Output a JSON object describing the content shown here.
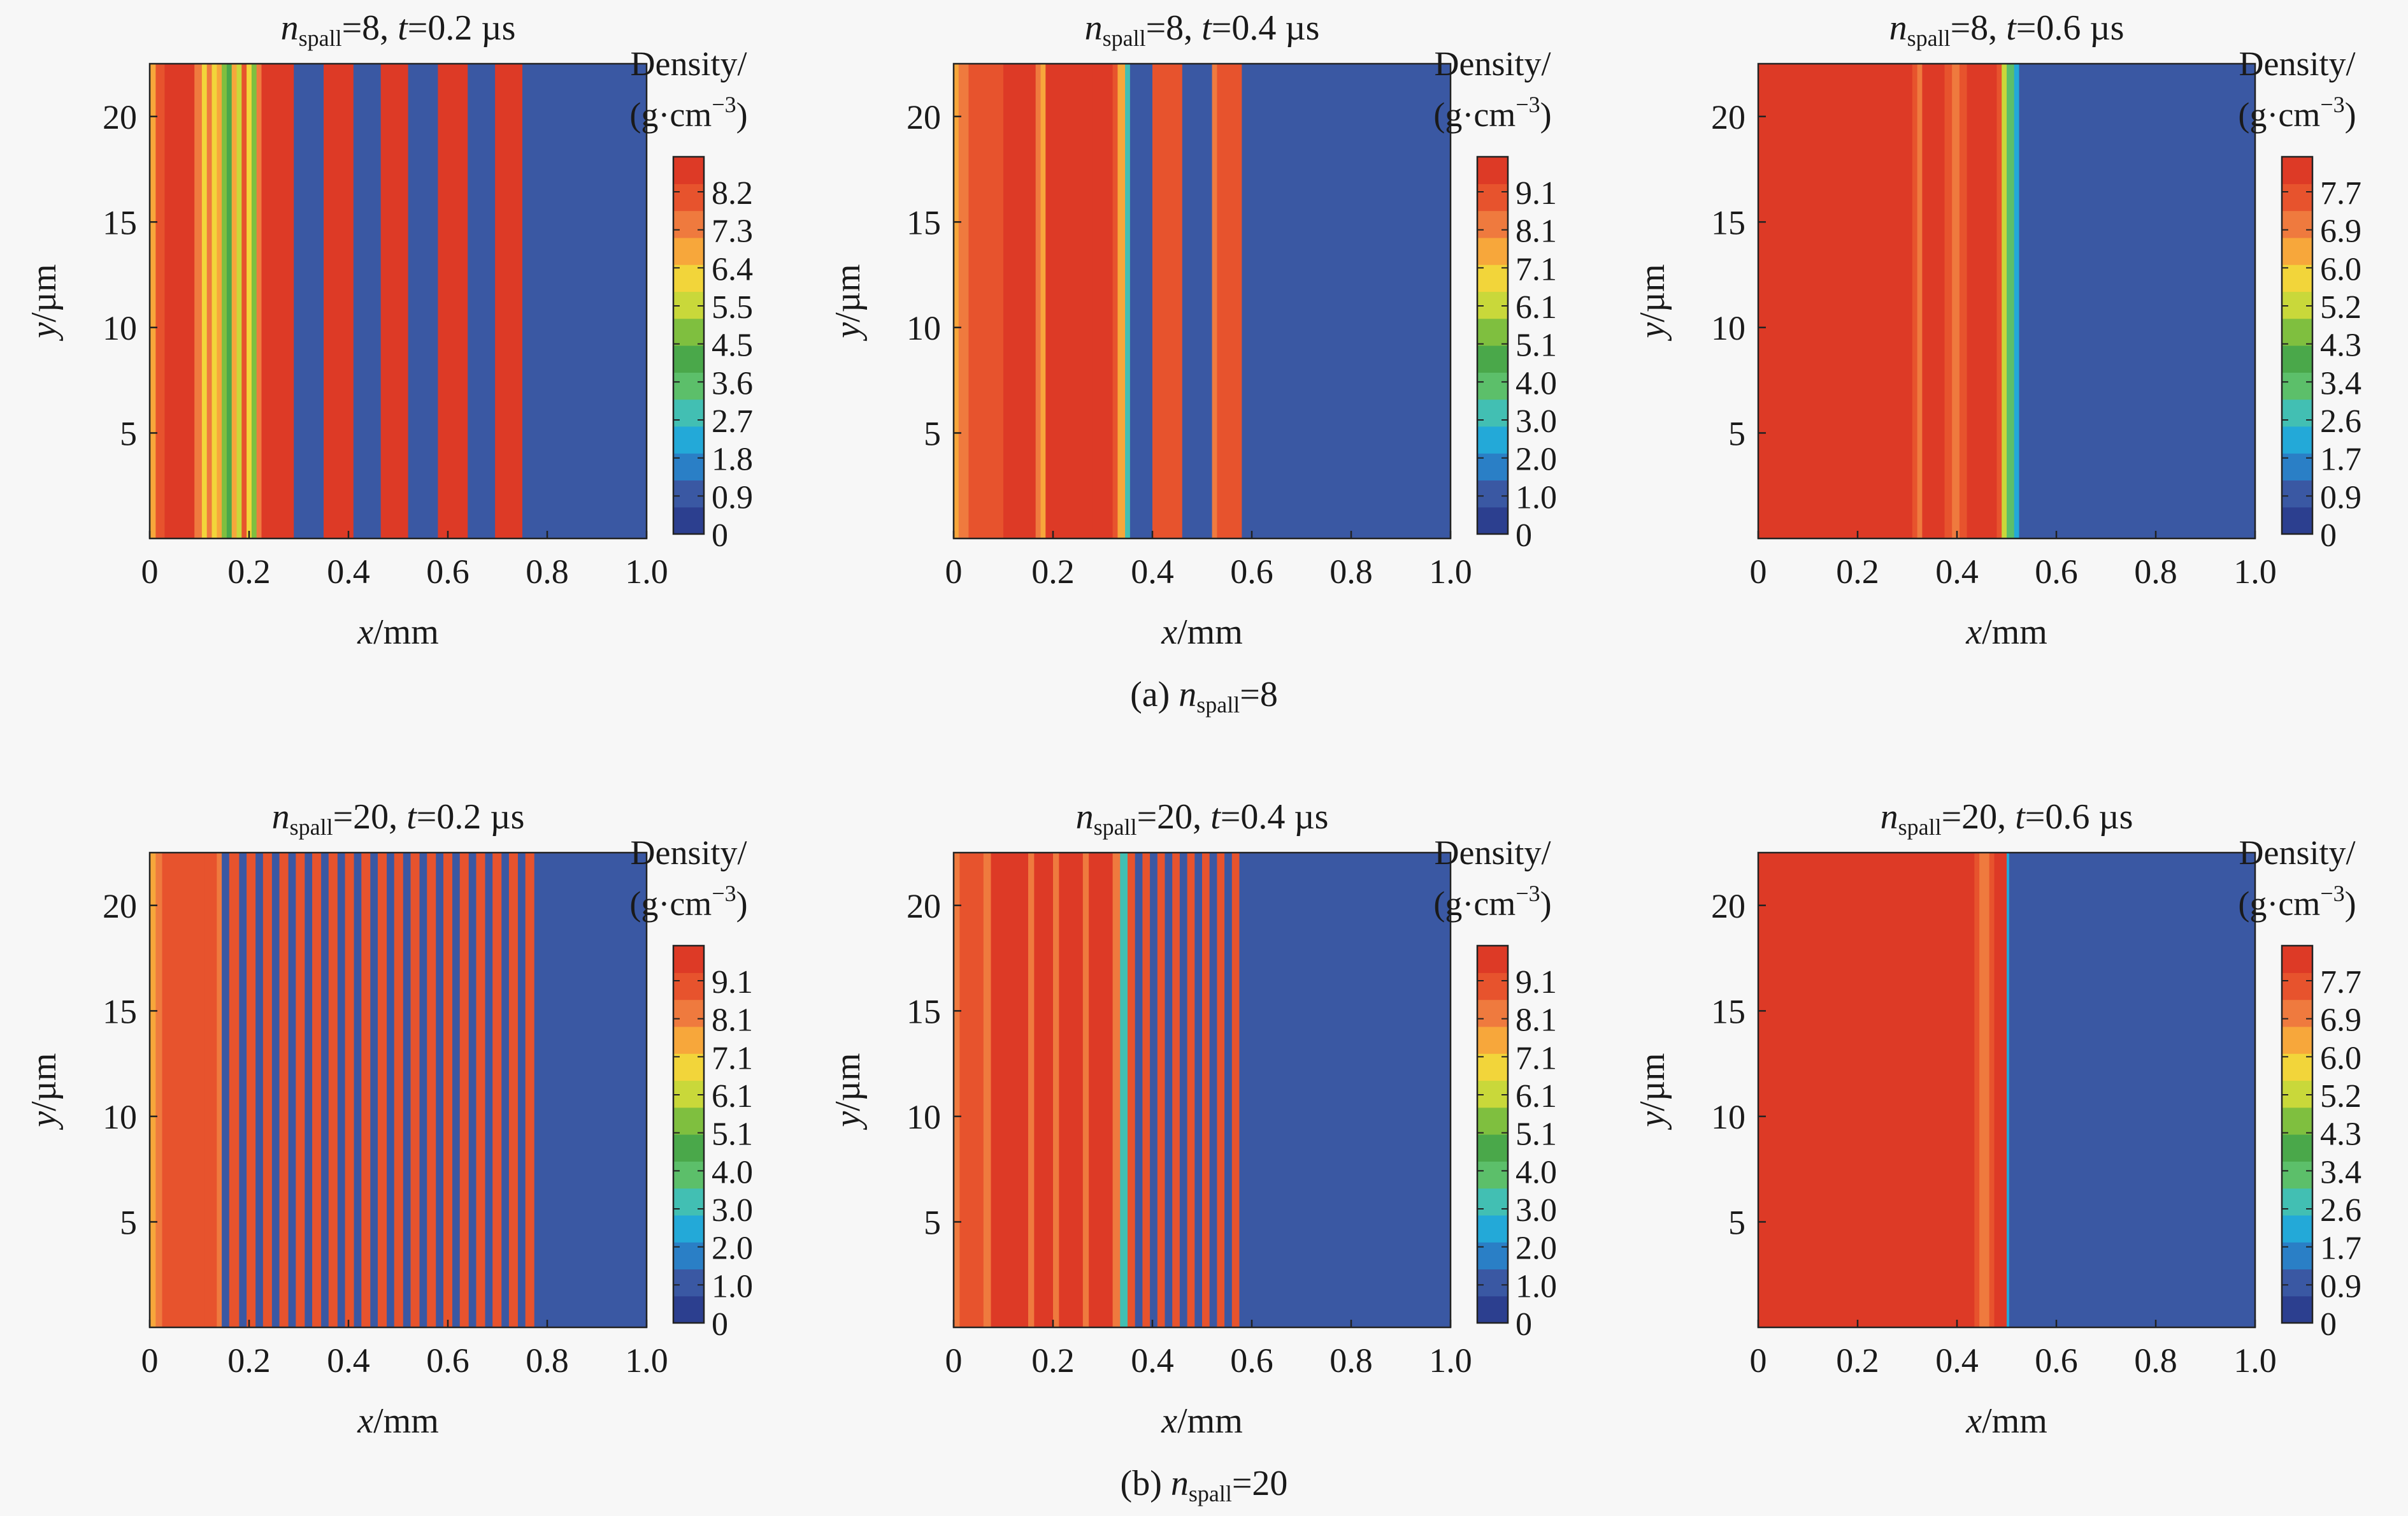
{
  "figure": {
    "background": "#f7f7f7",
    "plot_background": "#3a58a3",
    "colorbar_title_line1": "Density/",
    "colorbar_title_line2_prefix": "(g·cm",
    "colorbar_title_line2_exp": "−3",
    "colorbar_title_line2_suffix": ")",
    "colorbar_colors": [
      "#2c3f8f",
      "#3a58a3",
      "#2a7fc6",
      "#23a9d8",
      "#42bfb3",
      "#5cbf6a",
      "#4aa84a",
      "#7fbf3f",
      "#c9d83a",
      "#f2d53a",
      "#f7a73b",
      "#ef7a3e",
      "#e7532d",
      "#dd3a26"
    ]
  },
  "captions": [
    {
      "prefix": "(a) ",
      "n": "n",
      "sub": "spall",
      "suffix": "=8"
    },
    {
      "prefix": "(b) ",
      "n": "n",
      "sub": "spall",
      "suffix": "=20"
    }
  ],
  "chart_data": [
    {
      "type": "heatmap",
      "title": {
        "n": "n",
        "sub": "spall",
        "mid": "=8, ",
        "t": "t",
        "tail": "=0.2 µs"
      },
      "xlabel": {
        "var": "x",
        "unit": "/mm"
      },
      "ylabel": {
        "var": "y",
        "unit": "/µm"
      },
      "xlim": [
        0,
        1.0
      ],
      "ylim": [
        0,
        22.5
      ],
      "xticks": [
        "0",
        "0.2",
        "0.4",
        "0.6",
        "0.8",
        "1.0"
      ],
      "xtick_values": [
        0,
        0.2,
        0.4,
        0.6,
        0.8,
        1.0
      ],
      "yticks": [
        "5",
        "10",
        "15",
        "20"
      ],
      "ytick_values": [
        5,
        10,
        15,
        20
      ],
      "colorbar_ticks": [
        "0",
        "0.9",
        "1.8",
        "2.7",
        "3.6",
        "4.5",
        "5.5",
        "6.4",
        "7.3",
        "8.2"
      ],
      "colorbar_max": 9.2,
      "bands": [
        {
          "x0": 0.0,
          "x1": 0.012,
          "value": 7.0
        },
        {
          "x0": 0.012,
          "x1": 0.03,
          "value": 8.3
        },
        {
          "x0": 0.03,
          "x1": 0.09,
          "value": 8.9
        },
        {
          "x0": 0.09,
          "x1": 0.105,
          "value": 7.3
        },
        {
          "x0": 0.105,
          "x1": 0.115,
          "value": 6.5
        },
        {
          "x0": 0.115,
          "x1": 0.125,
          "value": 7.3
        },
        {
          "x0": 0.125,
          "x1": 0.135,
          "value": 6.0
        },
        {
          "x0": 0.135,
          "x1": 0.145,
          "value": 7.0
        },
        {
          "x0": 0.145,
          "x1": 0.155,
          "value": 5.0
        },
        {
          "x0": 0.155,
          "x1": 0.165,
          "value": 4.0
        },
        {
          "x0": 0.165,
          "x1": 0.175,
          "value": 7.0
        },
        {
          "x0": 0.175,
          "x1": 0.185,
          "value": 5.5
        },
        {
          "x0": 0.185,
          "x1": 0.195,
          "value": 8.0
        },
        {
          "x0": 0.195,
          "x1": 0.205,
          "value": 6.5
        },
        {
          "x0": 0.205,
          "x1": 0.215,
          "value": 5.0
        },
        {
          "x0": 0.215,
          "x1": 0.225,
          "value": 7.8
        },
        {
          "x0": 0.225,
          "x1": 0.235,
          "value": 8.6
        },
        {
          "x0": 0.235,
          "x1": 0.29,
          "value": 8.9
        },
        {
          "x0": 0.29,
          "x1": 0.35,
          "value": 0.95
        },
        {
          "x0": 0.35,
          "x1": 0.41,
          "value": 8.9
        },
        {
          "x0": 0.41,
          "x1": 0.465,
          "value": 0.95
        },
        {
          "x0": 0.465,
          "x1": 0.52,
          "value": 8.9
        },
        {
          "x0": 0.52,
          "x1": 0.58,
          "value": 0.95
        },
        {
          "x0": 0.58,
          "x1": 0.64,
          "value": 8.9
        },
        {
          "x0": 0.64,
          "x1": 0.695,
          "value": 0.95
        },
        {
          "x0": 0.695,
          "x1": 0.75,
          "value": 8.9
        },
        {
          "x0": 0.75,
          "x1": 1.0,
          "value": 0.95
        }
      ]
    },
    {
      "type": "heatmap",
      "title": {
        "n": "n",
        "sub": "spall",
        "mid": "=8, ",
        "t": "t",
        "tail": "=0.4 µs"
      },
      "xlabel": {
        "var": "x",
        "unit": "/mm"
      },
      "ylabel": {
        "var": "y",
        "unit": "/µm"
      },
      "xlim": [
        0,
        1.0
      ],
      "ylim": [
        0,
        22.5
      ],
      "xticks": [
        "0",
        "0.2",
        "0.4",
        "0.6",
        "0.8",
        "1.0"
      ],
      "xtick_values": [
        0,
        0.2,
        0.4,
        0.6,
        0.8,
        1.0
      ],
      "yticks": [
        "5",
        "10",
        "15",
        "20"
      ],
      "ytick_values": [
        5,
        10,
        15,
        20
      ],
      "colorbar_ticks": [
        "0",
        "1.0",
        "2.0",
        "3.0",
        "4.0",
        "5.1",
        "6.1",
        "7.1",
        "8.1",
        "9.1"
      ],
      "colorbar_max": 10.1,
      "bands": [
        {
          "x0": 0.0,
          "x1": 0.01,
          "value": 7.8
        },
        {
          "x0": 0.01,
          "x1": 0.03,
          "value": 8.3
        },
        {
          "x0": 0.03,
          "x1": 0.1,
          "value": 9.0
        },
        {
          "x0": 0.1,
          "x1": 0.165,
          "value": 9.5
        },
        {
          "x0": 0.165,
          "x1": 0.175,
          "value": 8.6
        },
        {
          "x0": 0.175,
          "x1": 0.185,
          "value": 7.8
        },
        {
          "x0": 0.185,
          "x1": 0.28,
          "value": 9.9
        },
        {
          "x0": 0.28,
          "x1": 0.32,
          "value": 9.6
        },
        {
          "x0": 0.32,
          "x1": 0.33,
          "value": 8.7
        },
        {
          "x0": 0.33,
          "x1": 0.345,
          "value": 7.8
        },
        {
          "x0": 0.345,
          "x1": 0.355,
          "value": 3.5
        },
        {
          "x0": 0.355,
          "x1": 0.4,
          "value": 1.0
        },
        {
          "x0": 0.4,
          "x1": 0.46,
          "value": 9.0
        },
        {
          "x0": 0.46,
          "x1": 0.52,
          "value": 1.0
        },
        {
          "x0": 0.52,
          "x1": 0.53,
          "value": 8.3
        },
        {
          "x0": 0.53,
          "x1": 0.58,
          "value": 9.0
        },
        {
          "x0": 0.58,
          "x1": 1.0,
          "value": 1.0
        }
      ]
    },
    {
      "type": "heatmap",
      "title": {
        "n": "n",
        "sub": "spall",
        "mid": "=8, ",
        "t": "t",
        "tail": "=0.6 µs"
      },
      "xlabel": {
        "var": "x",
        "unit": "/mm"
      },
      "ylabel": {
        "var": "y",
        "unit": "/µm"
      },
      "xlim": [
        0,
        1.0
      ],
      "ylim": [
        0,
        22.5
      ],
      "xticks": [
        "0",
        "0.2",
        "0.4",
        "0.6",
        "0.8",
        "1.0"
      ],
      "xtick_values": [
        0,
        0.2,
        0.4,
        0.6,
        0.8,
        1.0
      ],
      "yticks": [
        "5",
        "10",
        "15",
        "20"
      ],
      "ytick_values": [
        5,
        10,
        15,
        20
      ],
      "colorbar_ticks": [
        "0",
        "0.9",
        "1.7",
        "2.6",
        "3.4",
        "4.3",
        "5.2",
        "6.0",
        "6.9",
        "7.7"
      ],
      "colorbar_max": 8.5,
      "bands": [
        {
          "x0": 0.0,
          "x1": 0.31,
          "value": 8.3
        },
        {
          "x0": 0.31,
          "x1": 0.32,
          "value": 7.6
        },
        {
          "x0": 0.32,
          "x1": 0.33,
          "value": 7.0
        },
        {
          "x0": 0.33,
          "x1": 0.375,
          "value": 8.3
        },
        {
          "x0": 0.375,
          "x1": 0.39,
          "value": 7.6
        },
        {
          "x0": 0.39,
          "x1": 0.405,
          "value": 7.0
        },
        {
          "x0": 0.405,
          "x1": 0.42,
          "value": 7.6
        },
        {
          "x0": 0.42,
          "x1": 0.48,
          "value": 8.3
        },
        {
          "x0": 0.48,
          "x1": 0.49,
          "value": 7.6
        },
        {
          "x0": 0.49,
          "x1": 0.5,
          "value": 5.2
        },
        {
          "x0": 0.5,
          "x1": 0.515,
          "value": 3.4
        },
        {
          "x0": 0.515,
          "x1": 0.525,
          "value": 2.4
        },
        {
          "x0": 0.525,
          "x1": 1.0,
          "value": 0.9
        }
      ]
    },
    {
      "type": "heatmap",
      "title": {
        "n": "n",
        "sub": "spall",
        "mid": "=20, ",
        "t": "t",
        "tail": "=0.2 µs"
      },
      "xlabel": {
        "var": "x",
        "unit": "/mm"
      },
      "ylabel": {
        "var": "y",
        "unit": "/µm"
      },
      "xlim": [
        0,
        1.0
      ],
      "ylim": [
        0,
        22.5
      ],
      "xticks": [
        "0",
        "0.2",
        "0.4",
        "0.6",
        "0.8",
        "1.0"
      ],
      "xtick_values": [
        0,
        0.2,
        0.4,
        0.6,
        0.8,
        1.0
      ],
      "yticks": [
        "5",
        "10",
        "15",
        "20"
      ],
      "ytick_values": [
        5,
        10,
        15,
        20
      ],
      "colorbar_ticks": [
        "0",
        "1.0",
        "2.0",
        "3.0",
        "4.0",
        "5.1",
        "6.1",
        "7.1",
        "8.1",
        "9.1"
      ],
      "colorbar_max": 10.1,
      "bands": [
        {
          "x0": 0.0,
          "x1": 0.012,
          "value": 7.3
        },
        {
          "x0": 0.012,
          "x1": 0.025,
          "value": 8.3
        },
        {
          "x0": 0.025,
          "x1": 0.1,
          "value": 9.3
        },
        {
          "x0": 0.1,
          "x1": 0.11,
          "value": 8.7
        },
        {
          "x0": 0.11,
          "x1": 0.135,
          "value": 9.3
        },
        {
          "x0": 0.135,
          "x1": 0.145,
          "value": 8.6
        },
        {
          "x0": 0.145,
          "x1": 0.16,
          "value": 1.0
        },
        {
          "x0": 0.16,
          "x1": 0.18,
          "value": 9.0
        },
        {
          "x0": 0.18,
          "x1": 0.195,
          "value": 1.0
        },
        {
          "x0": 0.195,
          "x1": 0.213,
          "value": 9.0
        },
        {
          "x0": 0.213,
          "x1": 0.228,
          "value": 1.0
        },
        {
          "x0": 0.228,
          "x1": 0.246,
          "value": 9.0
        },
        {
          "x0": 0.246,
          "x1": 0.261,
          "value": 1.0
        },
        {
          "x0": 0.261,
          "x1": 0.279,
          "value": 9.0
        },
        {
          "x0": 0.279,
          "x1": 0.294,
          "value": 1.0
        },
        {
          "x0": 0.294,
          "x1": 0.312,
          "value": 9.0
        },
        {
          "x0": 0.312,
          "x1": 0.327,
          "value": 1.0
        },
        {
          "x0": 0.327,
          "x1": 0.345,
          "value": 9.0
        },
        {
          "x0": 0.345,
          "x1": 0.36,
          "value": 1.0
        },
        {
          "x0": 0.36,
          "x1": 0.378,
          "value": 9.0
        },
        {
          "x0": 0.378,
          "x1": 0.393,
          "value": 1.0
        },
        {
          "x0": 0.393,
          "x1": 0.411,
          "value": 9.0
        },
        {
          "x0": 0.411,
          "x1": 0.426,
          "value": 1.0
        },
        {
          "x0": 0.426,
          "x1": 0.444,
          "value": 9.0
        },
        {
          "x0": 0.444,
          "x1": 0.459,
          "value": 1.0
        },
        {
          "x0": 0.459,
          "x1": 0.477,
          "value": 9.0
        },
        {
          "x0": 0.477,
          "x1": 0.492,
          "value": 1.0
        },
        {
          "x0": 0.492,
          "x1": 0.51,
          "value": 9.0
        },
        {
          "x0": 0.51,
          "x1": 0.525,
          "value": 1.0
        },
        {
          "x0": 0.525,
          "x1": 0.543,
          "value": 9.0
        },
        {
          "x0": 0.543,
          "x1": 0.558,
          "value": 1.0
        },
        {
          "x0": 0.558,
          "x1": 0.576,
          "value": 9.0
        },
        {
          "x0": 0.576,
          "x1": 0.591,
          "value": 1.0
        },
        {
          "x0": 0.591,
          "x1": 0.609,
          "value": 9.0
        },
        {
          "x0": 0.609,
          "x1": 0.624,
          "value": 1.0
        },
        {
          "x0": 0.624,
          "x1": 0.642,
          "value": 9.0
        },
        {
          "x0": 0.642,
          "x1": 0.657,
          "value": 1.0
        },
        {
          "x0": 0.657,
          "x1": 0.675,
          "value": 9.0
        },
        {
          "x0": 0.675,
          "x1": 0.69,
          "value": 1.0
        },
        {
          "x0": 0.69,
          "x1": 0.708,
          "value": 9.0
        },
        {
          "x0": 0.708,
          "x1": 0.723,
          "value": 1.0
        },
        {
          "x0": 0.723,
          "x1": 0.741,
          "value": 9.0
        },
        {
          "x0": 0.741,
          "x1": 0.756,
          "value": 1.0
        },
        {
          "x0": 0.756,
          "x1": 0.774,
          "value": 9.0
        },
        {
          "x0": 0.774,
          "x1": 1.0,
          "value": 1.0
        }
      ]
    },
    {
      "type": "heatmap",
      "title": {
        "n": "n",
        "sub": "spall",
        "mid": "=20, ",
        "t": "t",
        "tail": "=0.4 µs"
      },
      "xlabel": {
        "var": "x",
        "unit": "/mm"
      },
      "ylabel": {
        "var": "y",
        "unit": "/µm"
      },
      "xlim": [
        0,
        1.0
      ],
      "ylim": [
        0,
        22.5
      ],
      "xticks": [
        "0",
        "0.2",
        "0.4",
        "0.6",
        "0.8",
        "1.0"
      ],
      "xtick_values": [
        0,
        0.2,
        0.4,
        0.6,
        0.8,
        1.0
      ],
      "yticks": [
        "5",
        "10",
        "15",
        "20"
      ],
      "ytick_values": [
        5,
        10,
        15,
        20
      ],
      "colorbar_ticks": [
        "0",
        "1.0",
        "2.0",
        "3.0",
        "4.0",
        "5.1",
        "6.1",
        "7.1",
        "8.1",
        "9.1"
      ],
      "colorbar_max": 10.1,
      "bands": [
        {
          "x0": 0.0,
          "x1": 0.012,
          "value": 8.0
        },
        {
          "x0": 0.012,
          "x1": 0.06,
          "value": 9.0
        },
        {
          "x0": 0.06,
          "x1": 0.075,
          "value": 8.3
        },
        {
          "x0": 0.075,
          "x1": 0.15,
          "value": 9.5
        },
        {
          "x0": 0.15,
          "x1": 0.162,
          "value": 8.6
        },
        {
          "x0": 0.162,
          "x1": 0.2,
          "value": 9.5
        },
        {
          "x0": 0.2,
          "x1": 0.212,
          "value": 8.6
        },
        {
          "x0": 0.212,
          "x1": 0.26,
          "value": 9.5
        },
        {
          "x0": 0.26,
          "x1": 0.272,
          "value": 8.6
        },
        {
          "x0": 0.272,
          "x1": 0.32,
          "value": 9.5
        },
        {
          "x0": 0.32,
          "x1": 0.335,
          "value": 8.3
        },
        {
          "x0": 0.335,
          "x1": 0.35,
          "value": 3.5
        },
        {
          "x0": 0.35,
          "x1": 0.365,
          "value": 9.0
        },
        {
          "x0": 0.365,
          "x1": 0.38,
          "value": 1.0
        },
        {
          "x0": 0.38,
          "x1": 0.395,
          "value": 9.0
        },
        {
          "x0": 0.395,
          "x1": 0.41,
          "value": 1.0
        },
        {
          "x0": 0.41,
          "x1": 0.425,
          "value": 9.0
        },
        {
          "x0": 0.425,
          "x1": 0.44,
          "value": 1.0
        },
        {
          "x0": 0.44,
          "x1": 0.455,
          "value": 9.0
        },
        {
          "x0": 0.455,
          "x1": 0.47,
          "value": 1.0
        },
        {
          "x0": 0.47,
          "x1": 0.485,
          "value": 9.0
        },
        {
          "x0": 0.485,
          "x1": 0.5,
          "value": 1.0
        },
        {
          "x0": 0.5,
          "x1": 0.515,
          "value": 9.0
        },
        {
          "x0": 0.515,
          "x1": 0.53,
          "value": 1.0
        },
        {
          "x0": 0.53,
          "x1": 0.545,
          "value": 9.0
        },
        {
          "x0": 0.545,
          "x1": 0.56,
          "value": 1.0
        },
        {
          "x0": 0.56,
          "x1": 0.575,
          "value": 9.0
        },
        {
          "x0": 0.575,
          "x1": 1.0,
          "value": 1.0
        }
      ]
    },
    {
      "type": "heatmap",
      "title": {
        "n": "n",
        "sub": "spall",
        "mid": "=20, ",
        "t": "t",
        "tail": "=0.6 µs"
      },
      "xlabel": {
        "var": "x",
        "unit": "/mm"
      },
      "ylabel": {
        "var": "y",
        "unit": "/µm"
      },
      "xlim": [
        0,
        1.0
      ],
      "ylim": [
        0,
        22.5
      ],
      "xticks": [
        "0",
        "0.2",
        "0.4",
        "0.6",
        "0.8",
        "1.0"
      ],
      "xtick_values": [
        0,
        0.2,
        0.4,
        0.6,
        0.8,
        1.0
      ],
      "yticks": [
        "5",
        "10",
        "15",
        "20"
      ],
      "ytick_values": [
        5,
        10,
        15,
        20
      ],
      "colorbar_ticks": [
        "0",
        "0.9",
        "1.7",
        "2.6",
        "3.4",
        "4.3",
        "5.2",
        "6.0",
        "6.9",
        "7.7"
      ],
      "colorbar_max": 8.5,
      "bands": [
        {
          "x0": 0.0,
          "x1": 0.435,
          "value": 8.3
        },
        {
          "x0": 0.435,
          "x1": 0.445,
          "value": 7.6
        },
        {
          "x0": 0.445,
          "x1": 0.465,
          "value": 7.2
        },
        {
          "x0": 0.465,
          "x1": 0.475,
          "value": 7.6
        },
        {
          "x0": 0.475,
          "x1": 0.5,
          "value": 8.3
        },
        {
          "x0": 0.5,
          "x1": 0.505,
          "value": 2.0
        },
        {
          "x0": 0.505,
          "x1": 1.0,
          "value": 0.9
        }
      ]
    }
  ]
}
